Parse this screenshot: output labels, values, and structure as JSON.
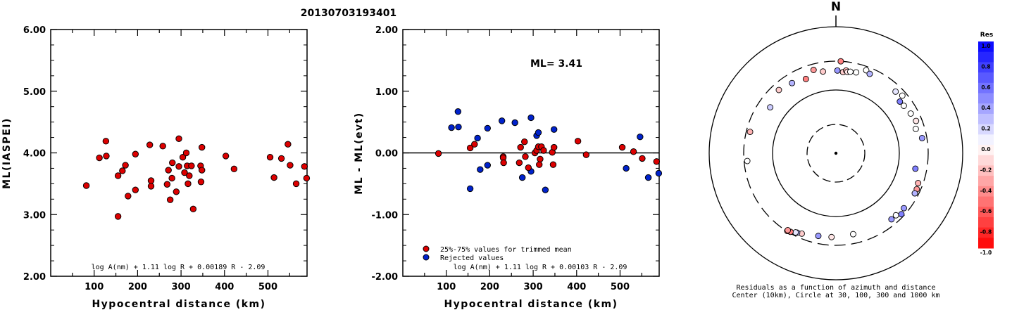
{
  "title": "20130703193401",
  "colors": {
    "accepted": "#dd0000",
    "rejected": "#0022cc",
    "frame": "#000000"
  },
  "chart_data": [
    {
      "type": "scatter",
      "xlabel": "Hypocentral distance (km)",
      "ylabel": "ML(IASPEI)",
      "xlim": [
        0,
        590
      ],
      "ylim": [
        2.0,
        6.0
      ],
      "xticks": [
        "100",
        "200",
        "300",
        "400",
        "500"
      ],
      "yticks": [
        "2.00",
        "3.00",
        "4.00",
        "5.00",
        "6.00"
      ],
      "formula": "log A(nm) + 1.11 log R + 0.00189 R - 2.09",
      "points": [
        [
          82,
          3.47
        ],
        [
          112,
          3.92
        ],
        [
          127,
          4.19
        ],
        [
          128,
          3.95
        ],
        [
          155,
          3.63
        ],
        [
          155,
          2.97
        ],
        [
          165,
          3.71
        ],
        [
          172,
          3.8
        ],
        [
          178,
          3.3
        ],
        [
          195,
          3.98
        ],
        [
          195,
          3.4
        ],
        [
          228,
          4.13
        ],
        [
          231,
          3.55
        ],
        [
          231,
          3.46
        ],
        [
          258,
          4.11
        ],
        [
          268,
          3.49
        ],
        [
          271,
          3.72
        ],
        [
          275,
          3.24
        ],
        [
          279,
          3.59
        ],
        [
          280,
          3.84
        ],
        [
          289,
          3.37
        ],
        [
          295,
          3.78
        ],
        [
          295,
          4.23
        ],
        [
          304,
          3.93
        ],
        [
          308,
          3.68
        ],
        [
          312,
          4.0
        ],
        [
          314,
          3.79
        ],
        [
          316,
          3.5
        ],
        [
          319,
          3.63
        ],
        [
          324,
          3.79
        ],
        [
          328,
          3.09
        ],
        [
          345,
          3.79
        ],
        [
          346,
          3.53
        ],
        [
          348,
          3.72
        ],
        [
          348,
          4.09
        ],
        [
          403,
          3.95
        ],
        [
          422,
          3.74
        ],
        [
          505,
          3.93
        ],
        [
          514,
          3.6
        ],
        [
          531,
          3.91
        ],
        [
          546,
          4.14
        ],
        [
          551,
          3.8
        ],
        [
          565,
          3.5
        ],
        [
          584,
          3.78
        ],
        [
          589,
          3.59
        ]
      ]
    },
    {
      "type": "scatter",
      "xlabel": "Hypocentral distance (km)",
      "ylabel": "ML - ML(evt)",
      "xlim": [
        0,
        590
      ],
      "ylim": [
        -2.0,
        2.0
      ],
      "xticks": [
        "100",
        "200",
        "300",
        "400",
        "500"
      ],
      "yticks": [
        "-2.00",
        "-1.00",
        "0.00",
        "1.00",
        "2.00"
      ],
      "annotation": "ML= 3.41",
      "formula": "log A(nm) + 1.11 log R + 0.00103 R - 2.09",
      "legend": [
        {
          "label": "25%-75% values for trimmed mean",
          "color": "#dd0000"
        },
        {
          "label": "Rejected values",
          "color": "#0022cc"
        }
      ],
      "series": [
        {
          "name": "25%-75% values for trimmed mean",
          "points": [
            [
              82,
              -0.01
            ],
            [
              155,
              0.08
            ],
            [
              165,
              0.14
            ],
            [
              231,
              -0.06
            ],
            [
              231,
              -0.08
            ],
            [
              232,
              -0.16
            ],
            [
              268,
              -0.16
            ],
            [
              271,
              0.09
            ],
            [
              280,
              0.18
            ],
            [
              282,
              -0.06
            ],
            [
              289,
              -0.24
            ],
            [
              304,
              0.0
            ],
            [
              308,
              0.04
            ],
            [
              312,
              0.1
            ],
            [
              314,
              -0.19
            ],
            [
              316,
              -0.1
            ],
            [
              319,
              0.1
            ],
            [
              324,
              0.04
            ],
            [
              344,
              0.01
            ],
            [
              346,
              -0.19
            ],
            [
              348,
              0.09
            ],
            [
              403,
              0.19
            ],
            [
              422,
              -0.03
            ],
            [
              505,
              0.09
            ],
            [
              531,
              0.02
            ],
            [
              551,
              -0.09
            ],
            [
              584,
              -0.14
            ]
          ]
        },
        {
          "name": "Rejected values",
          "points": [
            [
              112,
              0.41
            ],
            [
              127,
              0.67
            ],
            [
              128,
              0.42
            ],
            [
              155,
              -0.58
            ],
            [
              172,
              0.24
            ],
            [
              178,
              -0.27
            ],
            [
              195,
              0.4
            ],
            [
              195,
              -0.2
            ],
            [
              228,
              0.52
            ],
            [
              258,
              0.49
            ],
            [
              275,
              -0.4
            ],
            [
              295,
              -0.3
            ],
            [
              295,
              0.57
            ],
            [
              308,
              0.28
            ],
            [
              312,
              0.33
            ],
            [
              328,
              -0.6
            ],
            [
              348,
              0.38
            ],
            [
              514,
              -0.25
            ],
            [
              546,
              0.26
            ],
            [
              565,
              -0.4
            ],
            [
              589,
              -0.33
            ]
          ]
        }
      ]
    },
    {
      "type": "scatter",
      "subtype": "polar residual map",
      "north_label": "N",
      "caption_line1": "Residuals as a function of azimuth and distance",
      "caption_line2": "Center (10km), Circle at 30, 100, 300 and 1000 km",
      "colorbar": {
        "title": "Res",
        "ticks": [
          "1.0",
          "0.8",
          "0.6",
          "0.4",
          "0.2",
          "0.0",
          "-0.2",
          "-0.4",
          "-0.6",
          "-0.8",
          "-1.0"
        ]
      },
      "stations": [
        {
          "az": 3,
          "dist": 300,
          "res": -0.5
        },
        {
          "az": 345,
          "dist": 240,
          "res": -0.4
        },
        {
          "az": 351,
          "dist": 210,
          "res": -0.2
        },
        {
          "az": 1,
          "dist": 210,
          "res": 0.4
        },
        {
          "az": 5,
          "dist": 200,
          "res": -0.2
        },
        {
          "az": 7,
          "dist": 215,
          "res": -0.3
        },
        {
          "az": 8,
          "dist": 205,
          "res": -0.1
        },
        {
          "az": 10,
          "dist": 210,
          "res": 0.0
        },
        {
          "az": 14,
          "dist": 215,
          "res": 0.0
        },
        {
          "az": 20,
          "dist": 260,
          "res": 0.0
        },
        {
          "az": 23,
          "dist": 240,
          "res": 0.3
        },
        {
          "az": 328,
          "dist": 210,
          "res": 0.3
        },
        {
          "az": 338,
          "dist": 190,
          "res": -0.5
        },
        {
          "az": 318,
          "dist": 230,
          "res": -0.2
        },
        {
          "az": 305,
          "dist": 190,
          "res": 0.2
        },
        {
          "az": 284,
          "dist": 260,
          "res": -0.3
        },
        {
          "az": 265,
          "dist": 265,
          "res": 0.0
        },
        {
          "az": 49,
          "dist": 255,
          "res": 0.0
        },
        {
          "az": 44,
          "dist": 235,
          "res": 0.1
        },
        {
          "az": 51,
          "dist": 205,
          "res": 0.5
        },
        {
          "az": 55,
          "dist": 210,
          "res": 0.0
        },
        {
          "az": 62,
          "dist": 225,
          "res": 0.0
        },
        {
          "az": 68,
          "dist": 240,
          "res": -0.1
        },
        {
          "az": 73,
          "dist": 215,
          "res": 0.0
        },
        {
          "az": 80,
          "dist": 250,
          "res": 0.4
        },
        {
          "az": 101,
          "dist": 195,
          "res": 0.5
        },
        {
          "az": 110,
          "dist": 250,
          "res": -0.3
        },
        {
          "az": 114,
          "dist": 260,
          "res": -0.4
        },
        {
          "az": 117,
          "dist": 260,
          "res": 0.3
        },
        {
          "az": 129,
          "dist": 250,
          "res": 0.4
        },
        {
          "az": 136,
          "dist": 240,
          "res": 0.0
        },
        {
          "az": 133,
          "dist": 270,
          "res": 0.5
        },
        {
          "az": 140,
          "dist": 240,
          "res": 0.4
        },
        {
          "az": 168,
          "dist": 210,
          "res": 0.0
        },
        {
          "az": 183,
          "dist": 220,
          "res": -0.1
        },
        {
          "az": 192,
          "dist": 225,
          "res": 0.4
        },
        {
          "az": 203,
          "dist": 250,
          "res": -0.2
        },
        {
          "az": 206,
          "dist": 260,
          "res": 0.3
        },
        {
          "az": 207,
          "dist": 265,
          "res": 0.1
        },
        {
          "az": 210,
          "dist": 285,
          "res": -0.5
        },
        {
          "az": 212,
          "dist": 295,
          "res": -0.6
        },
        {
          "az": 212,
          "dist": 285,
          "res": -0.4
        }
      ]
    }
  ]
}
